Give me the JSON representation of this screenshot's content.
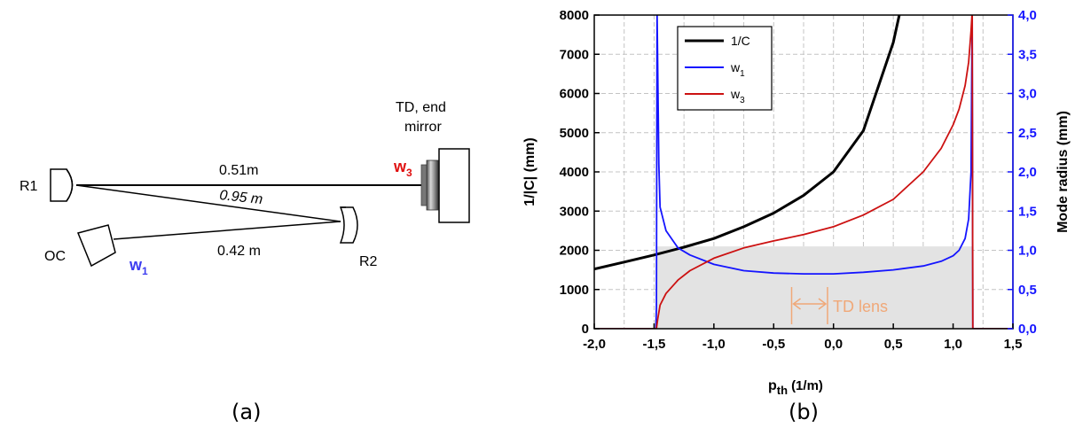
{
  "panels": {
    "a_label": "(a)",
    "b_label": "(b)"
  },
  "diagram": {
    "r1": "R1",
    "r2": "R2",
    "oc": "OC",
    "td_line1": "TD, end",
    "td_line2": "mirror",
    "d1": "0.51m",
    "d2": "0.95 m",
    "d3": "0.42 m",
    "w1_main": "w",
    "w1_sub": "1",
    "w3_main": "w",
    "w3_sub": "3",
    "colors": {
      "w1": "#3c3cf0",
      "w3": "#e01010"
    }
  },
  "chart_data": {
    "type": "line",
    "xlabel_main": "p",
    "xlabel_sub": "th",
    "xlabel_unit": "(1/m)",
    "ylabel_left": "1/|C| (mm)",
    "ylabel_right": "Mode radius (mm)",
    "xlim": [
      -2.0,
      1.5
    ],
    "ylim_left": [
      0,
      8000
    ],
    "ylim_right": [
      0,
      4.0
    ],
    "grid": true,
    "legend_position": "top-left",
    "x_ticks": [
      -2.0,
      -1.5,
      -1.0,
      -0.5,
      0.0,
      0.5,
      1.0,
      1.5
    ],
    "x_tick_labels": [
      "-2,0",
      "-1,5",
      "-1,0",
      "-0,5",
      "0,0",
      "0,5",
      "1,0",
      "1,5"
    ],
    "y_left_ticks": [
      0,
      1000,
      2000,
      3000,
      4000,
      5000,
      6000,
      7000,
      8000
    ],
    "y_left_tick_labels": [
      "0",
      "1000",
      "2000",
      "3000",
      "4000",
      "5000",
      "6000",
      "7000",
      "8000"
    ],
    "y_right_ticks": [
      0.0,
      0.5,
      1.0,
      1.5,
      2.0,
      2.5,
      3.0,
      3.5,
      4.0
    ],
    "y_right_tick_labels": [
      "0,0",
      "0,5",
      "1,0",
      "1,5",
      "2,0",
      "2,5",
      "3,0",
      "3,5",
      "4,0"
    ],
    "stability_range": [
      -1.48,
      1.16
    ],
    "annotation": {
      "text": "TD lens",
      "x_from": -0.35,
      "x_to": -0.05,
      "color": "#f0a878"
    },
    "series": [
      {
        "name": "1/C",
        "legend_main": "1/C",
        "legend_sub": "",
        "axis": "left",
        "color": "#000000",
        "x": [
          -2.0,
          -1.75,
          -1.5,
          -1.25,
          -1.0,
          -0.75,
          -0.5,
          -0.25,
          0.0,
          0.25,
          0.5,
          0.55
        ],
        "y": [
          1520,
          1700,
          1880,
          2080,
          2300,
          2600,
          2950,
          3400,
          4000,
          5050,
          7300,
          8000
        ]
      },
      {
        "name": "w1",
        "legend_main": "w",
        "legend_sub": "1",
        "axis": "right",
        "color": "#1515ff",
        "x": [
          -2.0,
          -1.485,
          -1.48,
          -1.475,
          -1.46,
          -1.45,
          -1.4,
          -1.3,
          -1.2,
          -1.0,
          -0.75,
          -0.5,
          -0.25,
          0.0,
          0.25,
          0.5,
          0.75,
          0.9,
          1.0,
          1.05,
          1.1,
          1.13,
          1.15,
          1.16,
          1.165,
          1.5
        ],
        "y": [
          0,
          0,
          0.3,
          4.05,
          2.1,
          1.55,
          1.25,
          1.03,
          0.94,
          0.82,
          0.74,
          0.71,
          0.7,
          0.7,
          0.72,
          0.75,
          0.8,
          0.86,
          0.93,
          1.0,
          1.15,
          1.4,
          2.0,
          4.05,
          0,
          0
        ]
      },
      {
        "name": "w3",
        "legend_main": "w",
        "legend_sub": "3",
        "axis": "right",
        "color": "#cc1111",
        "x": [
          -2.0,
          -1.48,
          -1.47,
          -1.45,
          -1.4,
          -1.3,
          -1.2,
          -1.0,
          -0.75,
          -0.5,
          -0.25,
          0.0,
          0.25,
          0.5,
          0.75,
          0.9,
          1.0,
          1.05,
          1.1,
          1.13,
          1.15,
          1.16,
          1.165,
          1.5
        ],
        "y": [
          0,
          0,
          0.12,
          0.3,
          0.45,
          0.62,
          0.74,
          0.9,
          1.03,
          1.12,
          1.2,
          1.3,
          1.45,
          1.65,
          2.0,
          2.3,
          2.6,
          2.8,
          3.1,
          3.4,
          3.8,
          4.05,
          0,
          0
        ]
      }
    ]
  }
}
